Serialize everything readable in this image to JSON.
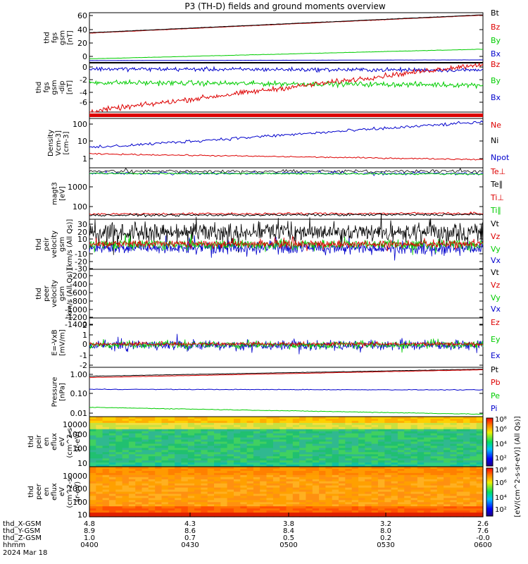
{
  "title": "P3 (TH-D) fields and ground moments overview",
  "colors": {
    "black": "#000000",
    "red": "#dd0000",
    "green": "#00cc00",
    "blue": "#0000cc",
    "grid": "#000000"
  },
  "chart_data": [
    {
      "type": "line",
      "ylabel": [
        "thd",
        "fgs",
        "gsm",
        "[nT]"
      ],
      "yticks": [
        "60",
        "40",
        "20",
        "0"
      ],
      "ylim": [
        -5,
        65
      ],
      "legend": [
        {
          "name": "Bt",
          "color": "black"
        },
        {
          "name": "Bz",
          "color": "red"
        },
        {
          "name": "By",
          "color": "green"
        },
        {
          "name": "Bx",
          "color": "blue"
        }
      ],
      "series": [
        {
          "name": "Bt",
          "values_start": 37,
          "values_end": 62
        },
        {
          "name": "Bz",
          "values_start": 36.5,
          "values_end": 61.5
        },
        {
          "name": "By",
          "values_start": 0.5,
          "values_end": 14
        },
        {
          "name": "Bx",
          "values_start": -2,
          "values_end": -1
        }
      ]
    },
    {
      "type": "line",
      "ylabel": [
        "thd",
        "fgs",
        "gsm",
        "-dip",
        "[nT]"
      ],
      "yticks": [
        "0",
        "-2",
        "-4",
        "-6"
      ],
      "ylim": [
        -7.6,
        0.4
      ],
      "legend": [
        {
          "name": "Bz",
          "color": "red"
        },
        {
          "name": "By",
          "color": "green"
        },
        {
          "name": "Bx",
          "color": "blue"
        }
      ],
      "series": [
        {
          "name": "Bz",
          "values_start": -7.5,
          "values_end": 0.2
        },
        {
          "name": "By",
          "values_start": -2.8,
          "values_end": -3.2
        },
        {
          "name": "Bx",
          "values_start": -0.6,
          "values_end": -0.8
        }
      ]
    },
    {
      "type": "line",
      "ylabel": [],
      "yticks": [],
      "legend": [],
      "series": [
        {
          "name": "",
          "values_start": 0,
          "values_end": 0
        }
      ]
    },
    {
      "type": "line",
      "scale": "log",
      "ylabel": [
        "Density",
        "Vcm-3]",
        "[cm-3]"
      ],
      "yticks": [
        "100",
        "10",
        "1"
      ],
      "ylim": [
        0.5,
        150
      ],
      "legend": [
        {
          "name": "Ne",
          "color": "red"
        },
        {
          "name": "Ni",
          "color": "black"
        },
        {
          "name": "Npot",
          "color": "blue"
        }
      ],
      "series": [
        {
          "name": "Npot",
          "values_start": 5,
          "values_end": 100
        },
        {
          "name": "Ne",
          "values_start": 2.5,
          "values_end": 1.3
        }
      ]
    },
    {
      "type": "line",
      "scale": "log",
      "ylabel": [
        "magt3",
        "[eV]"
      ],
      "yticks": [
        "1000",
        "100"
      ],
      "ylim": [
        40,
        5000
      ],
      "legend": [
        {
          "name": "Te⊥",
          "color": "red"
        },
        {
          "name": "Te∥",
          "color": "black"
        },
        {
          "name": "Ti⊥",
          "color": "red"
        },
        {
          "name": "Ti∥",
          "color": "green"
        }
      ],
      "series": [
        {
          "name": "Ti⊥",
          "values_start": 4000,
          "values_end": 3800
        },
        {
          "name": "Ti∥",
          "values_start": 3000,
          "values_end": 2800
        },
        {
          "name": "Te⊥",
          "values_start": 65,
          "values_end": 70
        }
      ]
    },
    {
      "type": "line",
      "ylabel": [
        "thd",
        "peir",
        "velocity",
        "gsm",
        "[km/s (All Qs)]"
      ],
      "yticks": [
        "30",
        "20",
        "10",
        "0",
        "-10",
        "-20",
        "-30"
      ],
      "ylim": [
        -35,
        35
      ],
      "legend": [
        {
          "name": "Vt",
          "color": "black"
        },
        {
          "name": "Vz",
          "color": "red"
        },
        {
          "name": "Vy",
          "color": "green"
        },
        {
          "name": "Vx",
          "color": "blue"
        }
      ]
    },
    {
      "type": "line",
      "ylabel": [
        "thd",
        "peer",
        "velocity",
        "gsm",
        "[km/s (All Qs)]"
      ],
      "yticks": [
        "-200",
        "-400",
        "-600",
        "-800",
        "-1000",
        "-1200",
        "-1400"
      ],
      "ylim": [
        -1500,
        -100
      ],
      "legend": [
        {
          "name": "Vt",
          "color": "black"
        },
        {
          "name": "Vz",
          "color": "red"
        },
        {
          "name": "Vy",
          "color": "green"
        },
        {
          "name": "Vx",
          "color": "blue"
        }
      ]
    },
    {
      "type": "line",
      "ylabel": [
        "E=-VxB",
        "[mV/m]"
      ],
      "yticks": [
        "2",
        "1",
        "0",
        "-1",
        "-2"
      ],
      "ylim": [
        -2.2,
        2.2
      ],
      "legend": [
        {
          "name": "Ez",
          "color": "red"
        },
        {
          "name": "Ey",
          "color": "green"
        },
        {
          "name": "Ex",
          "color": "blue"
        }
      ]
    },
    {
      "type": "line",
      "scale": "log",
      "ylabel": [
        "Pressure",
        "[nPa]"
      ],
      "yticks": [
        "1.00",
        "0.10",
        "0.01"
      ],
      "ylim": [
        0.006,
        2
      ],
      "legend": [
        {
          "name": "Pt",
          "color": "black"
        },
        {
          "name": "Pb",
          "color": "red"
        },
        {
          "name": "Pe",
          "color": "green"
        },
        {
          "name": "Pi",
          "color": "blue"
        }
      ],
      "series": [
        {
          "name": "Pt",
          "values_start": 0.7,
          "values_end": 1.6
        },
        {
          "name": "Pb",
          "values_start": 0.6,
          "values_end": 1.5
        },
        {
          "name": "Pi",
          "values_start": 0.15,
          "values_end": 0.14
        },
        {
          "name": "Pe",
          "values_start": 0.018,
          "values_end": 0.008
        }
      ]
    },
    {
      "type": "heatmap",
      "ylabel": [
        "thd",
        "peir",
        "en",
        "eflux",
        "eV",
        "(cm^2-s-",
        "sr-eV)"
      ],
      "yticks": [
        "10000",
        "1000",
        "100",
        "10"
      ]
    },
    {
      "type": "heatmap",
      "ylabel": [
        "thd",
        "peer",
        "en",
        "eflux",
        "eV",
        "(cm^2-s-",
        "sr-eV)"
      ],
      "yticks": [
        "10000",
        "1000",
        "100",
        "10"
      ]
    }
  ],
  "colorbar": {
    "tick_labels": [
      "10⁸",
      "10⁶",
      "10⁴",
      "10²",
      "10⁸",
      "10⁶",
      "10⁴",
      "10²"
    ],
    "label": "[eV/(cm^2-s-sr-eV)] (All Qs)]"
  },
  "xaxis": {
    "rows": [
      {
        "label": "thd_X-GSM",
        "values": [
          "4.8",
          "4.3",
          "3.8",
          "3.2",
          "2.6"
        ]
      },
      {
        "label": "thd_Y-GSM",
        "values": [
          "8.9",
          "8.6",
          "8.4",
          "8.0",
          "7.6"
        ]
      },
      {
        "label": "thd_Z-GSM",
        "values": [
          "1.0",
          "0.7",
          "0.5",
          "0.2",
          "-0.0"
        ]
      },
      {
        "label": "hhmm",
        "values": [
          "0400",
          "0430",
          "0500",
          "0530",
          "0600"
        ]
      }
    ],
    "date": "2024 Mar 18"
  }
}
